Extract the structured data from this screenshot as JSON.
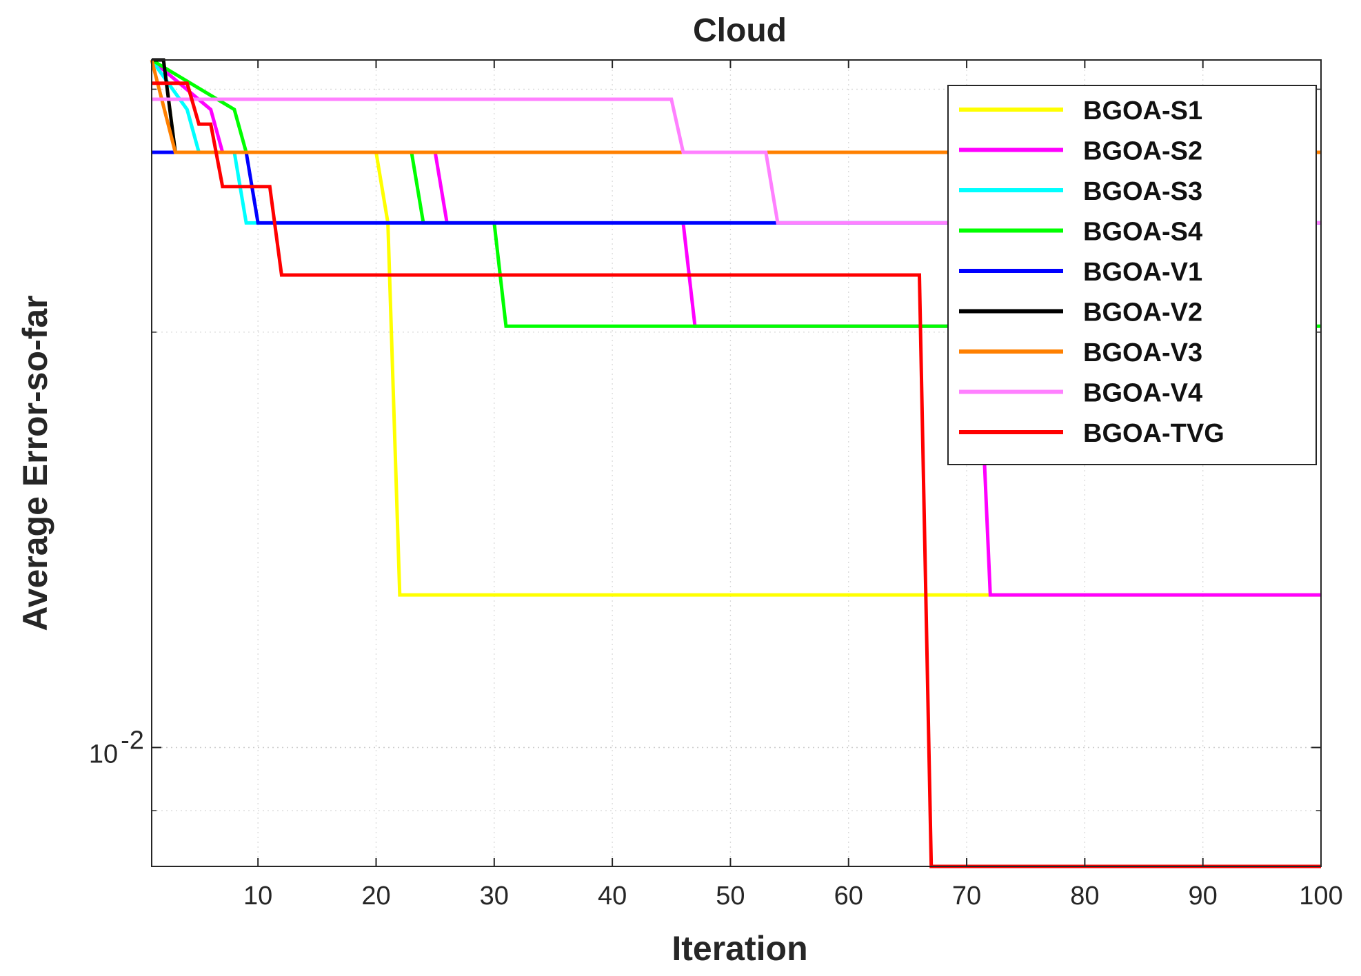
{
  "chart_data": {
    "type": "line",
    "title": "Cloud",
    "xlabel": "Iteration",
    "ylabel": "Average Error-so-far",
    "xlim": [
      1,
      100
    ],
    "ylim": [
      0.0082,
      0.0315
    ],
    "yscale": "log",
    "xticks": [
      10,
      20,
      30,
      40,
      50,
      60,
      70,
      80,
      90,
      100
    ],
    "yticks": [
      {
        "value": 0.01,
        "base": "10",
        "exponent": "-2"
      }
    ],
    "grid": true,
    "legend_position": "top-right",
    "series": [
      {
        "name": "BGOA-S1",
        "color": "#ffff00",
        "points": [
          [
            1,
            0.0315
          ],
          [
            2,
            0.0315
          ],
          [
            3,
            0.027
          ],
          [
            20,
            0.027
          ],
          [
            21,
            0.024
          ],
          [
            22,
            0.0129
          ],
          [
            100,
            0.0129
          ]
        ]
      },
      {
        "name": "BGOA-S2",
        "color": "#ff00ff",
        "points": [
          [
            1,
            0.0315
          ],
          [
            6,
            0.029
          ],
          [
            7,
            0.027
          ],
          [
            25,
            0.027
          ],
          [
            26,
            0.024
          ],
          [
            46,
            0.024
          ],
          [
            47,
            0.0202
          ],
          [
            71,
            0.0202
          ],
          [
            72,
            0.0129
          ],
          [
            100,
            0.0129
          ]
        ]
      },
      {
        "name": "BGOA-S3",
        "color": "#00ffff",
        "points": [
          [
            1,
            0.0315
          ],
          [
            4,
            0.029
          ],
          [
            5,
            0.027
          ],
          [
            8,
            0.027
          ],
          [
            9,
            0.024
          ],
          [
            100,
            0.024
          ]
        ]
      },
      {
        "name": "BGOA-S4",
        "color": "#00ff00",
        "points": [
          [
            1,
            0.0315
          ],
          [
            8,
            0.029
          ],
          [
            9,
            0.027
          ],
          [
            23,
            0.027
          ],
          [
            24,
            0.024
          ],
          [
            30,
            0.024
          ],
          [
            31,
            0.0202
          ],
          [
            100,
            0.0202
          ]
        ]
      },
      {
        "name": "BGOA-V1",
        "color": "#0000ff",
        "points": [
          [
            1,
            0.027
          ],
          [
            9,
            0.027
          ],
          [
            10,
            0.024
          ],
          [
            100,
            0.024
          ]
        ]
      },
      {
        "name": "BGOA-V2",
        "color": "#000000",
        "points": [
          [
            1,
            0.0315
          ],
          [
            2,
            0.0315
          ],
          [
            3,
            0.027
          ],
          [
            100,
            0.027
          ]
        ]
      },
      {
        "name": "BGOA-V3",
        "color": "#ff8000",
        "points": [
          [
            1,
            0.0315
          ],
          [
            3,
            0.027
          ],
          [
            100,
            0.027
          ]
        ]
      },
      {
        "name": "BGOA-V4",
        "color": "#ff80ff",
        "points": [
          [
            1,
            0.0295
          ],
          [
            45,
            0.0295
          ],
          [
            46,
            0.027
          ],
          [
            53,
            0.027
          ],
          [
            54,
            0.024
          ],
          [
            100,
            0.024
          ]
        ]
      },
      {
        "name": "BGOA-TVG",
        "color": "#ff0000",
        "points": [
          [
            1,
            0.0303
          ],
          [
            4,
            0.0303
          ],
          [
            5,
            0.0283
          ],
          [
            6,
            0.0283
          ],
          [
            7,
            0.0255
          ],
          [
            11,
            0.0255
          ],
          [
            12,
            0.022
          ],
          [
            66,
            0.022
          ],
          [
            67,
            0.0082
          ],
          [
            100,
            0.0082
          ]
        ]
      }
    ]
  }
}
